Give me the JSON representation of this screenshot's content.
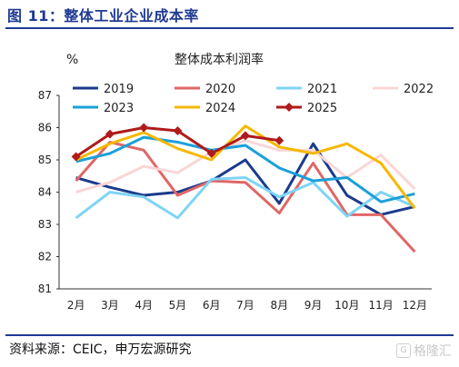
{
  "figure_title": "图 11：整体工业企业成本率",
  "source_text": "资料来源：CEIC，申万宏源研究",
  "watermark_text": "格隆汇",
  "chart_data": {
    "type": "line",
    "title": "整体成本利润率",
    "ylabel": "%",
    "xlabel": "",
    "ylim": [
      81,
      87
    ],
    "yticks": [
      "81",
      "82",
      "83",
      "84",
      "85",
      "86",
      "87"
    ],
    "categories": [
      "2月",
      "3月",
      "4月",
      "5月",
      "6月",
      "7月",
      "8月",
      "9月",
      "10月",
      "11月",
      "12月"
    ],
    "legend_position": "top",
    "grid": false,
    "series": [
      {
        "name": "2019",
        "color": "#1b3a8c",
        "width": 3,
        "marker": false,
        "values": [
          84.45,
          84.15,
          83.9,
          84.0,
          84.35,
          85.0,
          83.65,
          85.5,
          83.9,
          83.3,
          83.55
        ]
      },
      {
        "name": "2020",
        "color": "#e06666",
        "width": 3,
        "marker": false,
        "values": [
          84.35,
          85.55,
          85.3,
          83.9,
          84.35,
          84.3,
          83.35,
          84.9,
          83.3,
          83.3,
          82.15
        ]
      },
      {
        "name": "2021",
        "color": "#7fd4f5",
        "width": 3,
        "marker": false,
        "values": [
          83.2,
          84.0,
          83.85,
          83.2,
          84.4,
          84.45,
          83.85,
          84.3,
          83.25,
          84.0,
          83.55
        ]
      },
      {
        "name": "2022",
        "color": "#f9d6d6",
        "width": 3,
        "marker": false,
        "values": [
          84.0,
          84.3,
          84.8,
          84.6,
          85.25,
          85.6,
          85.3,
          85.3,
          84.45,
          85.15,
          84.1
        ]
      },
      {
        "name": "2023",
        "color": "#1aa0d8",
        "width": 3,
        "marker": false,
        "values": [
          84.95,
          85.2,
          85.7,
          85.55,
          85.3,
          85.45,
          84.75,
          84.35,
          84.45,
          83.7,
          83.95
        ]
      },
      {
        "name": "2024",
        "color": "#f5b800",
        "width": 3,
        "marker": false,
        "values": [
          85.0,
          85.5,
          85.85,
          85.35,
          85.0,
          86.05,
          85.4,
          85.2,
          85.5,
          84.9,
          83.5
        ]
      },
      {
        "name": "2025",
        "color": "#b01a1a",
        "width": 3,
        "marker": true,
        "values": [
          85.1,
          85.8,
          86.0,
          85.9,
          85.2,
          85.75,
          85.6,
          null,
          null,
          null,
          null
        ]
      }
    ]
  }
}
